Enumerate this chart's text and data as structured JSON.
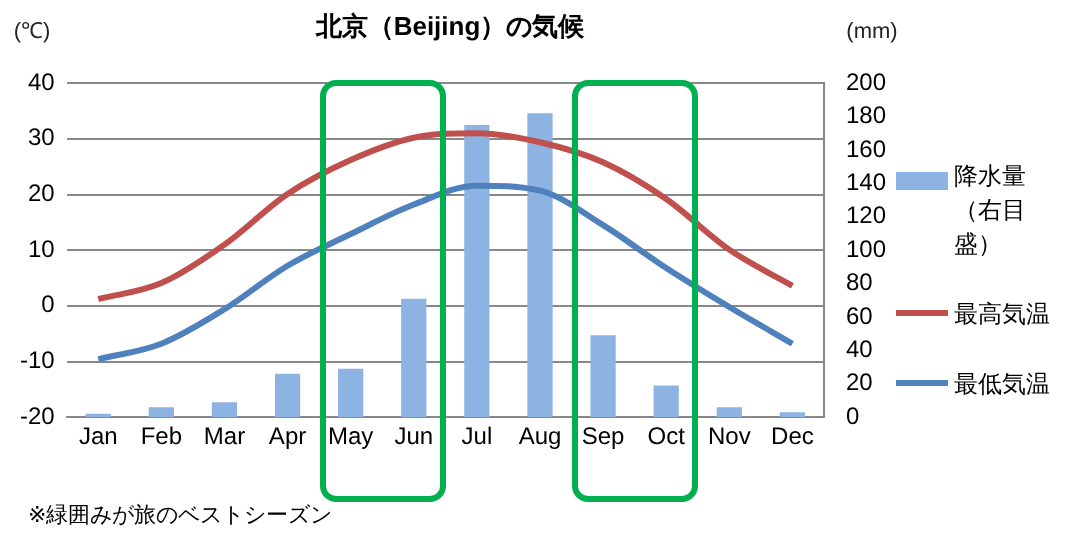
{
  "chart_data": {
    "type": "bar",
    "title": "北京（Beijing）の気候",
    "ylabel": "(℃)",
    "y2label": "(mm)",
    "categories": [
      "Jan",
      "Feb",
      "Mar",
      "Apr",
      "May",
      "Jun",
      "Jul",
      "Aug",
      "Sep",
      "Oct",
      "Nov",
      "Dec"
    ],
    "series": [
      {
        "name": "降水量（右目盛）",
        "axis": "y2",
        "color": "#8db3e2",
        "values": [
          2,
          6,
          9,
          26,
          29,
          71,
          175,
          182,
          49,
          19,
          6,
          3
        ]
      },
      {
        "name": "最高気温",
        "type": "line",
        "color": "#c0504d",
        "values": [
          1.2,
          4.1,
          11,
          20.1,
          26.2,
          30.2,
          31,
          29.4,
          25.8,
          19.2,
          10.1,
          3.6
        ]
      },
      {
        "name": "最低気温",
        "type": "line",
        "color": "#4f81bd",
        "values": [
          -9.6,
          -6.8,
          -0.6,
          7.2,
          12.9,
          18.2,
          21.6,
          20.7,
          14.5,
          6.8,
          -0.2,
          -6.8
        ]
      }
    ],
    "ylim": [
      -20,
      40
    ],
    "yticks": [
      -20,
      -10,
      0,
      10,
      20,
      30,
      40
    ],
    "y2lim": [
      0,
      200
    ],
    "y2ticks": [
      0,
      20,
      40,
      60,
      80,
      100,
      120,
      140,
      160,
      180,
      200
    ],
    "annotations": [
      "※緑囲みが旅のベストシーズン"
    ],
    "grid": "y",
    "legend": "right",
    "marker": "none",
    "line_style": "solid"
  }
}
